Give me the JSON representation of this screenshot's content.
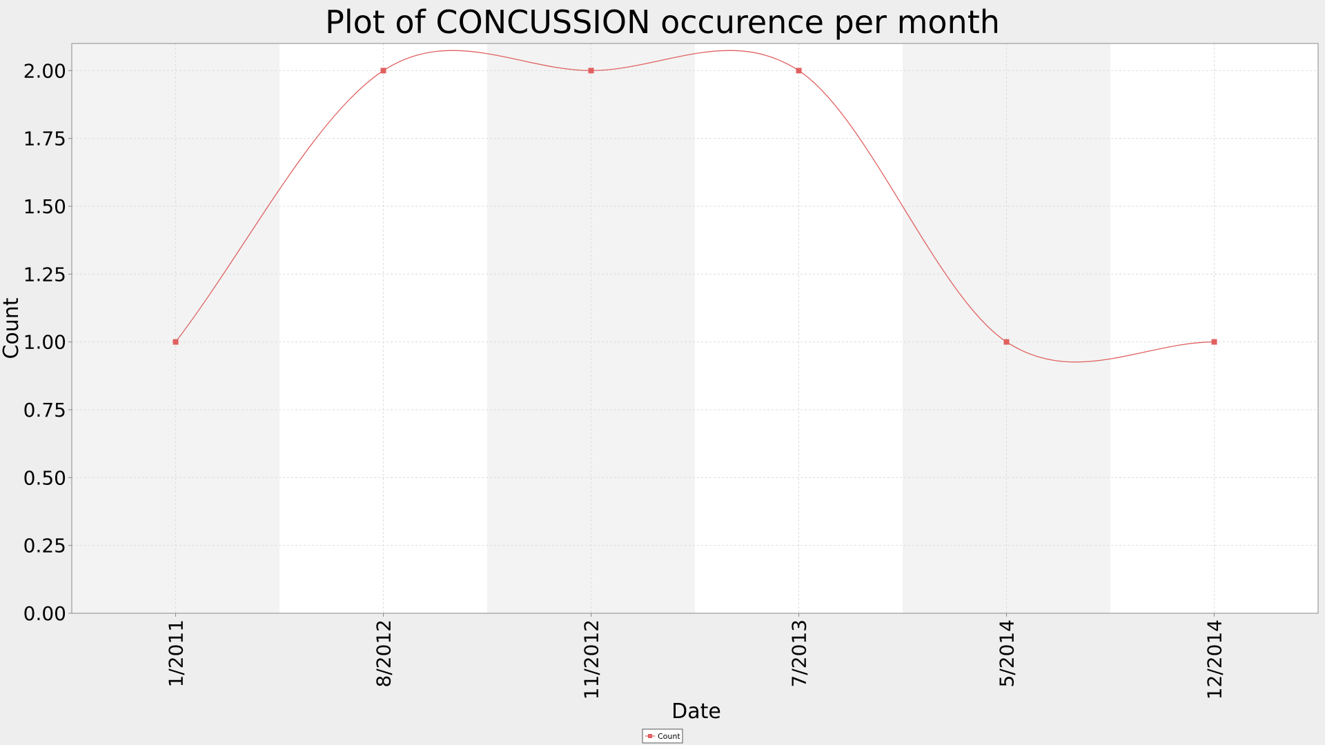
{
  "chart_data": {
    "type": "line",
    "title": "Plot of CONCUSSION occurence per month",
    "xlabel": "Date",
    "ylabel": "Count",
    "ylim": [
      0,
      2.1
    ],
    "yticks": [
      "0.00",
      "0.25",
      "0.50",
      "0.75",
      "1.00",
      "1.25",
      "1.50",
      "1.75",
      "2.00"
    ],
    "ytick_values": [
      0,
      0.25,
      0.5,
      0.75,
      1.0,
      1.25,
      1.5,
      1.75,
      2.0
    ],
    "categories": [
      "1/2011",
      "8/2012",
      "11/2012",
      "7/2013",
      "5/2014",
      "12/2014"
    ],
    "grid": true,
    "alternating_bands": true,
    "legend_position": "bottom-center",
    "series": [
      {
        "name": "Count",
        "color": "#e06060",
        "marker": "square",
        "values": [
          1.0,
          2.0,
          2.0,
          2.0,
          1.0,
          1.0
        ]
      }
    ]
  }
}
